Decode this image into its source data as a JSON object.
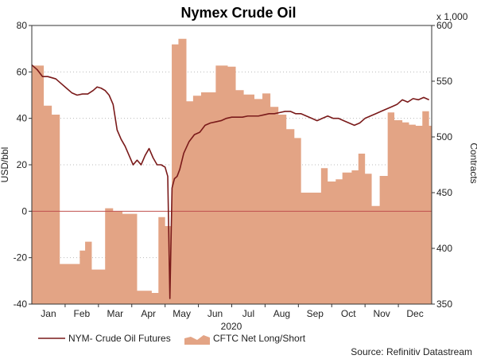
{
  "chart_data": {
    "type": "line",
    "title": "Nymex Crude Oil",
    "year_label": "2020",
    "xlabel": "",
    "ylabel_left": "USD/bbl",
    "ylabel_right": "Contracts",
    "right_axis_multiplier": "x 1,000",
    "source": "Source: Refinitiv Datastream",
    "x_tick_labels": [
      "Jan",
      "Feb",
      "Mar",
      "Apr",
      "May",
      "Jun",
      "Jul",
      "Aug",
      "Sep",
      "Oct",
      "Nov",
      "Dec"
    ],
    "left_axis": {
      "ylim": [
        -40,
        80
      ],
      "ticks": [
        "-40",
        "-20",
        "0",
        "20",
        "40",
        "60",
        "80"
      ]
    },
    "right_axis": {
      "ylim": [
        350,
        600
      ],
      "ticks": [
        "350",
        "400",
        "450",
        "500",
        "550",
        "600"
      ]
    },
    "colors": {
      "line": "#7a1a1a",
      "area": "#e3a485",
      "zero_line": "#c0504d"
    },
    "legend": {
      "placement": "bottom-left"
    },
    "series": [
      {
        "name": "NYM- Crude Oil Futures",
        "axis": "left",
        "kind": "line",
        "points": [
          [
            0.0,
            63
          ],
          [
            0.2,
            61
          ],
          [
            0.4,
            58
          ],
          [
            0.6,
            58
          ],
          [
            0.9,
            57
          ],
          [
            1.1,
            55
          ],
          [
            1.3,
            53
          ],
          [
            1.5,
            51
          ],
          [
            1.7,
            50
          ],
          [
            1.9,
            50.5
          ],
          [
            2.1,
            50.5
          ],
          [
            2.3,
            52
          ],
          [
            2.45,
            53.5
          ],
          [
            2.6,
            53
          ],
          [
            2.75,
            52
          ],
          [
            2.9,
            50
          ],
          [
            3.05,
            46
          ],
          [
            3.2,
            35
          ],
          [
            3.35,
            31
          ],
          [
            3.5,
            28
          ],
          [
            3.65,
            24
          ],
          [
            3.8,
            20
          ],
          [
            3.95,
            22
          ],
          [
            4.1,
            20
          ],
          [
            4.25,
            24
          ],
          [
            4.4,
            27
          ],
          [
            4.55,
            23
          ],
          [
            4.7,
            20
          ],
          [
            4.85,
            20
          ],
          [
            5.0,
            19
          ],
          [
            5.1,
            15
          ],
          [
            5.18,
            -37.6
          ],
          [
            5.26,
            10
          ],
          [
            5.35,
            14
          ],
          [
            5.45,
            15
          ],
          [
            5.55,
            18
          ],
          [
            5.7,
            25
          ],
          [
            5.9,
            30
          ],
          [
            6.1,
            33
          ],
          [
            6.3,
            34
          ],
          [
            6.5,
            37
          ],
          [
            6.7,
            38
          ],
          [
            6.9,
            38.5
          ],
          [
            7.1,
            39
          ],
          [
            7.3,
            40
          ],
          [
            7.5,
            40.5
          ],
          [
            7.7,
            40.5
          ],
          [
            7.9,
            40.5
          ],
          [
            8.1,
            41
          ],
          [
            8.3,
            41
          ],
          [
            8.5,
            41
          ],
          [
            8.7,
            41.5
          ],
          [
            8.9,
            42
          ],
          [
            9.1,
            42
          ],
          [
            9.3,
            42.5
          ],
          [
            9.5,
            43
          ],
          [
            9.7,
            43
          ],
          [
            9.9,
            42
          ],
          [
            10.1,
            42
          ],
          [
            10.3,
            41
          ],
          [
            10.5,
            40
          ],
          [
            10.7,
            39
          ],
          [
            10.9,
            40
          ],
          [
            11.1,
            41
          ],
          [
            11.3,
            40
          ],
          [
            11.5,
            40
          ],
          [
            11.7,
            39
          ],
          [
            11.9,
            38
          ],
          [
            12.1,
            37
          ],
          [
            12.3,
            38
          ],
          [
            12.5,
            40
          ],
          [
            12.7,
            41
          ],
          [
            12.9,
            42
          ],
          [
            13.1,
            43
          ],
          [
            13.3,
            44
          ],
          [
            13.5,
            45
          ],
          [
            13.7,
            46
          ],
          [
            13.9,
            48
          ],
          [
            14.1,
            47
          ],
          [
            14.3,
            48.5
          ],
          [
            14.5,
            48
          ],
          [
            14.7,
            49
          ],
          [
            14.9,
            48
          ]
        ]
      },
      {
        "name": "CFTC Net Long/Short",
        "axis": "right",
        "kind": "step-area",
        "points": [
          [
            0.0,
            564
          ],
          [
            0.45,
            528
          ],
          [
            0.75,
            520
          ],
          [
            1.05,
            386
          ],
          [
            1.5,
            386
          ],
          [
            1.8,
            398
          ],
          [
            2.0,
            406
          ],
          [
            2.25,
            381
          ],
          [
            2.75,
            436
          ],
          [
            3.05,
            433
          ],
          [
            3.4,
            431
          ],
          [
            3.95,
            362
          ],
          [
            4.1,
            362
          ],
          [
            4.5,
            360
          ],
          [
            4.75,
            428
          ],
          [
            5.0,
            420
          ],
          [
            5.25,
            583
          ],
          [
            5.5,
            588
          ],
          [
            5.8,
            532
          ],
          [
            6.05,
            537
          ],
          [
            6.35,
            540
          ],
          [
            6.65,
            540
          ],
          [
            6.9,
            564
          ],
          [
            7.35,
            563
          ],
          [
            7.65,
            542
          ],
          [
            7.95,
            538
          ],
          [
            8.35,
            534
          ],
          [
            8.65,
            539
          ],
          [
            8.95,
            527
          ],
          [
            9.25,
            520
          ],
          [
            9.55,
            507
          ],
          [
            9.85,
            499
          ],
          [
            10.1,
            450
          ],
          [
            10.6,
            450
          ],
          [
            10.85,
            472
          ],
          [
            11.1,
            460
          ],
          [
            11.4,
            462
          ],
          [
            11.65,
            468
          ],
          [
            12.0,
            470
          ],
          [
            12.25,
            485
          ],
          [
            12.5,
            467
          ],
          [
            12.75,
            438
          ],
          [
            13.05,
            465
          ],
          [
            13.35,
            522
          ],
          [
            13.6,
            515
          ],
          [
            13.9,
            513
          ],
          [
            14.15,
            511
          ],
          [
            14.4,
            510
          ],
          [
            14.65,
            523
          ],
          [
            14.9,
            510
          ],
          [
            15.0,
            510
          ]
        ]
      }
    ]
  }
}
